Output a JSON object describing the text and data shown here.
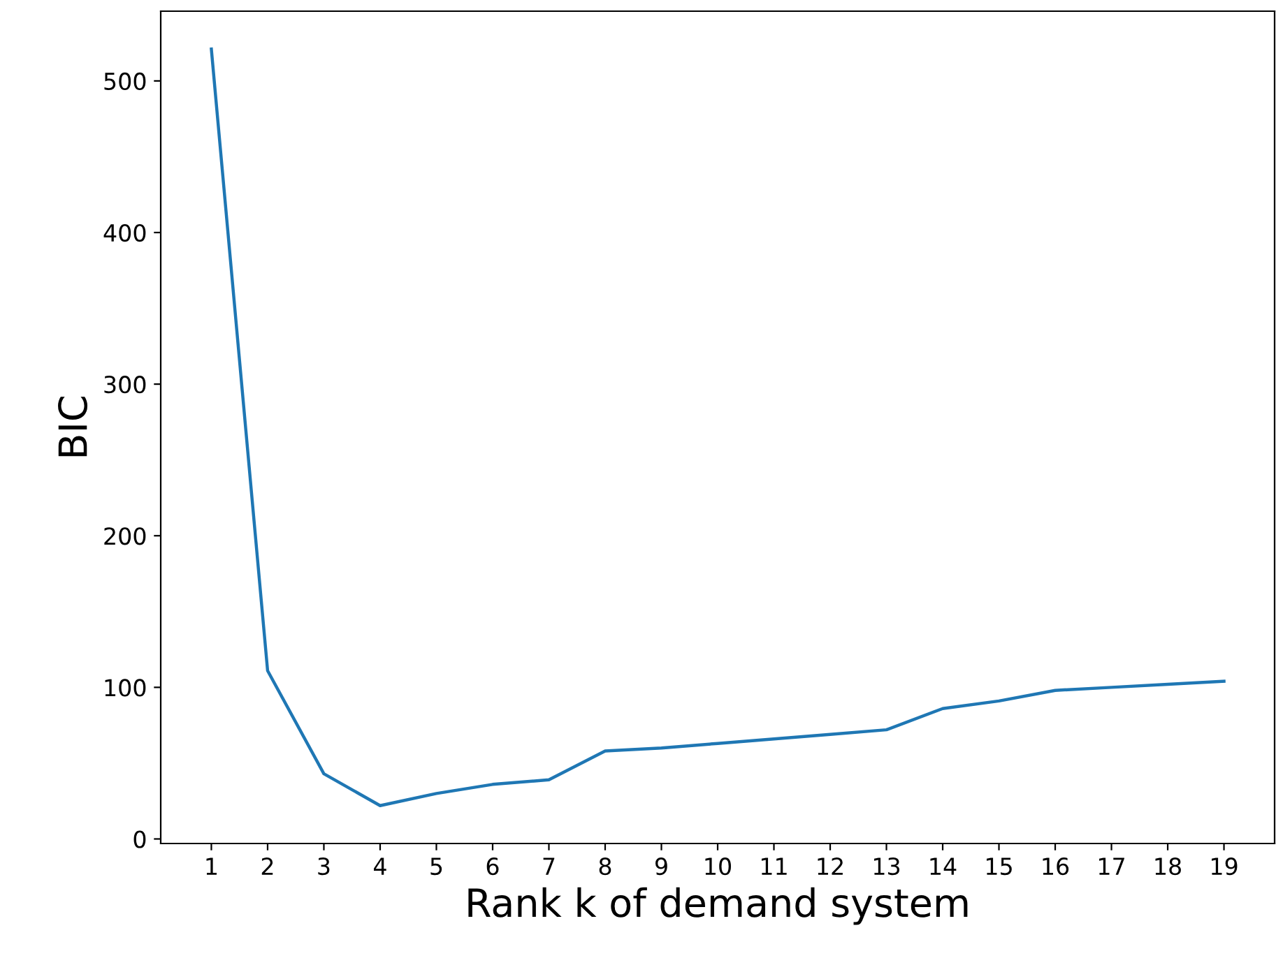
{
  "chart_data": {
    "type": "line",
    "xlabel": "Rank k of demand system",
    "ylabel": "BIC",
    "x": [
      1,
      2,
      3,
      4,
      5,
      6,
      7,
      8,
      9,
      10,
      11,
      12,
      13,
      14,
      15,
      16,
      17,
      18,
      19
    ],
    "values": [
      521,
      111,
      43,
      22,
      30,
      36,
      39,
      58,
      60,
      63,
      66,
      69,
      72,
      86,
      91,
      98,
      100,
      102,
      104
    ],
    "color": "#1f77b4",
    "xlim": [
      0.1,
      19.9
    ],
    "ylim": [
      -3,
      546
    ],
    "xticks": [
      1,
      2,
      3,
      4,
      5,
      6,
      7,
      8,
      9,
      10,
      11,
      12,
      13,
      14,
      15,
      16,
      17,
      18,
      19
    ],
    "yticks": [
      0,
      100,
      200,
      300,
      400,
      500
    ],
    "grid": false,
    "marker": "none",
    "line_style": "solid"
  }
}
